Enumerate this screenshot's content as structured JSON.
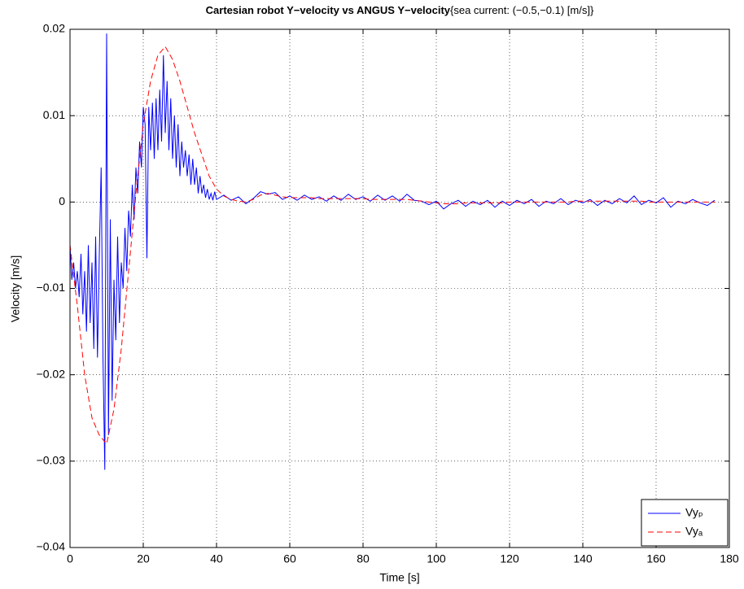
{
  "chart_data": {
    "type": "line",
    "title": "Cartesian robot Y−velocity vs ANGUS Y−velocity",
    "title_note": "{sea current: (−0.5,−0.1) [m/s]}",
    "xlabel": "Time [s]",
    "ylabel": "Velocity [m/s]",
    "xlim": [
      0,
      180
    ],
    "xticks": [
      0,
      20,
      40,
      60,
      80,
      100,
      120,
      140,
      160,
      180
    ],
    "ylim": [
      -0.04,
      0.02
    ],
    "yticks": [
      {
        "value": -0.04,
        "label": "−0.04"
      },
      {
        "value": -0.03,
        "label": "−0.03"
      },
      {
        "value": -0.02,
        "label": "−0.02"
      },
      {
        "value": -0.01,
        "label": "−0.01"
      },
      0,
      0.01,
      0.02
    ],
    "grid": true,
    "legend": "lower right",
    "series": [
      {
        "name": "Vyₚ",
        "color": "#0000ff",
        "dash": "solid",
        "x": [
          0,
          0.5,
          1,
          1.5,
          2,
          2.5,
          3,
          3.5,
          4,
          4.5,
          5,
          5.5,
          6,
          6.5,
          7,
          7.5,
          8,
          8.5,
          9,
          9.5,
          10,
          10.5,
          11,
          11.5,
          12,
          12.5,
          13,
          13.5,
          14,
          14.5,
          15,
          15.5,
          16,
          16.5,
          17,
          17.5,
          18,
          18.5,
          19,
          19.5,
          20,
          20.5,
          21,
          21.5,
          22,
          22.5,
          23,
          23.5,
          24,
          24.5,
          25,
          25.5,
          26,
          26.5,
          27,
          27.5,
          28,
          28.5,
          29,
          29.5,
          30,
          30.5,
          31,
          31.5,
          32,
          32.5,
          33,
          33.5,
          34,
          34.5,
          35,
          35.5,
          36,
          36.5,
          37,
          37.5,
          38,
          38.5,
          39,
          39.5,
          40,
          42,
          44,
          46,
          48,
          50,
          52,
          54,
          56,
          58,
          60,
          62,
          64,
          66,
          68,
          70,
          72,
          74,
          76,
          78,
          80,
          82,
          84,
          86,
          88,
          90,
          92,
          94,
          96,
          98,
          100,
          102,
          104,
          106,
          108,
          110,
          112,
          114,
          116,
          118,
          120,
          122,
          124,
          126,
          128,
          130,
          132,
          134,
          136,
          138,
          140,
          142,
          144,
          146,
          148,
          150,
          152,
          154,
          156,
          158,
          160,
          162,
          164,
          166,
          168,
          170,
          172,
          174,
          176
        ],
        "values": [
          -0.005,
          -0.009,
          -0.007,
          -0.01,
          -0.008,
          -0.011,
          -0.006,
          -0.013,
          -0.008,
          -0.015,
          -0.005,
          -0.014,
          -0.007,
          -0.017,
          -0.004,
          -0.018,
          -0.006,
          0.004,
          -0.018,
          -0.031,
          0.0195,
          -0.027,
          -0.002,
          -0.023,
          -0.009,
          -0.016,
          -0.004,
          -0.014,
          -0.007,
          -0.01,
          -0.003,
          -0.008,
          -0.001,
          -0.004,
          0.002,
          -0.002,
          0.004,
          0.001,
          0.007,
          0.004,
          0.011,
          0.009,
          -0.0065,
          0.011,
          0.006,
          0.0115,
          0.005,
          0.012,
          0.006,
          0.013,
          0.007,
          0.017,
          0.008,
          0.014,
          0.006,
          0.012,
          0.005,
          0.01,
          0.004,
          0.009,
          0.003,
          0.007,
          0.004,
          0.006,
          0.003,
          0.0055,
          0.002,
          0.005,
          0.002,
          0.004,
          0.001,
          0.003,
          0.001,
          0.002,
          0.0005,
          0.0015,
          0.0003,
          0.001,
          0.0002,
          0.0012,
          0.0003,
          0.0008,
          0.0002,
          0.0006,
          -0.0002,
          0.0004,
          0.0012,
          0.0009,
          0.0011,
          0.0003,
          0.0007,
          0.0002,
          0.0008,
          0.0003,
          0.0006,
          0.0001,
          0.0007,
          0.0002,
          0.0009,
          0.0003,
          0.0006,
          0.0001,
          0.0008,
          0.0002,
          0.0007,
          0.0001,
          0.0009,
          0.0002,
          0.0001,
          -0.0003,
          0.0001,
          -0.0008,
          -0.0002,
          0.0002,
          -0.0005,
          0.0001,
          -0.0003,
          0.0002,
          -0.0006,
          0.0001,
          -0.0004,
          0.0002,
          -0.0002,
          0.0003,
          -0.0005,
          0.0001,
          -0.0002,
          0.0004,
          -0.0003,
          0.0002,
          -0.0001,
          0.0003,
          -0.0004,
          0.0002,
          -0.0002,
          0.0004,
          -0.0001,
          0.0007,
          -0.0003,
          0.0002,
          -0.0001,
          0.0005,
          -0.0006,
          0.0001,
          -0.0002,
          0.0003,
          -0.0001,
          -0.0004,
          0.0002
        ]
      },
      {
        "name": "Vyₐ",
        "color": "#ff0000",
        "dash": "dashed",
        "x": [
          0,
          2,
          4,
          6,
          8,
          10,
          12,
          14,
          16,
          18,
          20,
          22,
          24,
          26,
          28,
          30,
          32,
          34,
          36,
          38,
          40,
          42,
          44,
          46,
          48,
          50,
          52,
          54,
          56,
          58,
          60,
          62,
          64,
          66,
          68,
          70,
          72,
          74,
          76,
          78,
          80,
          82,
          84,
          86,
          88,
          90,
          92,
          94,
          96,
          98,
          100,
          102,
          104,
          106,
          108,
          110,
          112,
          114,
          116,
          118,
          120,
          122,
          124,
          126,
          128,
          130,
          132,
          134,
          136,
          138,
          140,
          142,
          144,
          146,
          148,
          150,
          152,
          154,
          156,
          158,
          160,
          162,
          164,
          166,
          168,
          170,
          172,
          174,
          176
        ],
        "values": [
          -0.005,
          -0.012,
          -0.02,
          -0.025,
          -0.027,
          -0.028,
          -0.024,
          -0.017,
          -0.008,
          0.001,
          0.009,
          0.014,
          0.017,
          0.018,
          0.0165,
          0.014,
          0.011,
          0.008,
          0.0055,
          0.003,
          0.0015,
          0.0007,
          0.0003,
          0.0001,
          0,
          0.0003,
          0.0008,
          0.001,
          0.0008,
          0.0006,
          0.0005,
          0.0005,
          0.0005,
          0.0005,
          0.0004,
          0.0004,
          0.0004,
          0.0004,
          0.0004,
          0.0004,
          0.0004,
          0.0003,
          0.0003,
          0.0003,
          0.0003,
          0.0003,
          0.0003,
          0.0002,
          0.0001,
          0,
          -0.0001,
          -0.0002,
          -0.0002,
          -0.0002,
          -0.0001,
          -0.0001,
          -0.0001,
          -0.0001,
          -0.0001,
          -0.0001,
          0,
          0,
          0,
          0,
          0,
          0,
          0,
          0,
          0,
          0.0001,
          0.0001,
          0.0001,
          0.0001,
          0.0001,
          0.0001,
          0.0001,
          0.0001,
          0.0001,
          0.0001,
          0,
          0,
          0,
          0,
          0,
          0,
          0,
          0,
          0,
          0
        ]
      }
    ]
  }
}
